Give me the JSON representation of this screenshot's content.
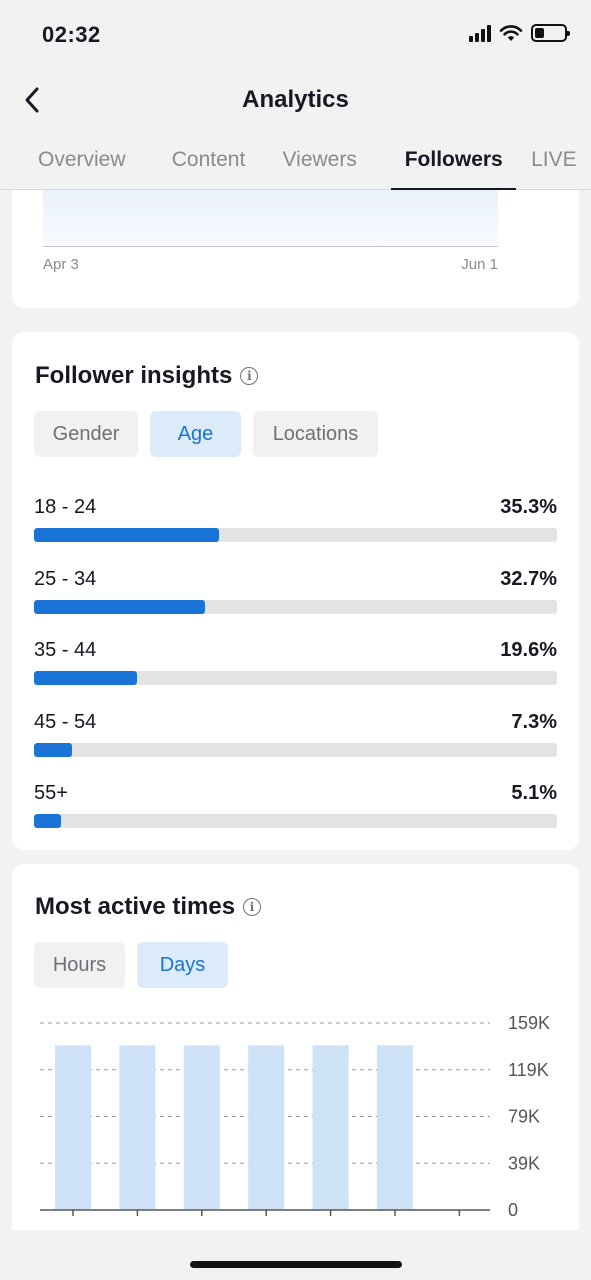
{
  "status": {
    "time": "02:32"
  },
  "header": {
    "title": "Analytics"
  },
  "tabs": [
    {
      "label": "Overview",
      "active": false
    },
    {
      "label": "Content",
      "active": false
    },
    {
      "label": "Viewers",
      "active": false
    },
    {
      "label": "Followers",
      "active": true
    },
    {
      "label": "LIVE",
      "active": false
    }
  ],
  "top_chart": {
    "x_start": "Apr 3",
    "x_end": "Jun 1"
  },
  "insights": {
    "title": "Follower insights",
    "filters": [
      {
        "label": "Gender",
        "active": false
      },
      {
        "label": "Age",
        "active": true
      },
      {
        "label": "Locations",
        "active": false
      }
    ],
    "ages": [
      {
        "label": "18 - 24",
        "value": "35.3%",
        "pct": 35.3
      },
      {
        "label": "25 - 34",
        "value": "32.7%",
        "pct": 32.7
      },
      {
        "label": "35 - 44",
        "value": "19.6%",
        "pct": 19.6
      },
      {
        "label": "45 - 54",
        "value": "7.3%",
        "pct": 7.3
      },
      {
        "label": "55+",
        "value": "5.1%",
        "pct": 5.1
      }
    ]
  },
  "active_times": {
    "title": "Most active times",
    "filters": [
      {
        "label": "Hours",
        "active": false
      },
      {
        "label": "Days",
        "active": true
      }
    ]
  },
  "chart_data": {
    "type": "bar",
    "title": "Most active times",
    "y_ticks": [
      "159K",
      "119K",
      "79K",
      "39K",
      "0"
    ],
    "ylim": [
      0,
      159000
    ],
    "values": [
      140000,
      140000,
      140000,
      140000,
      140000,
      140000,
      0
    ],
    "grid": true,
    "bar_color": "#cde2f7"
  },
  "colors": {
    "accent": "#1a73d6",
    "accent_light": "#dcebfa",
    "background": "#f2f2f2"
  }
}
